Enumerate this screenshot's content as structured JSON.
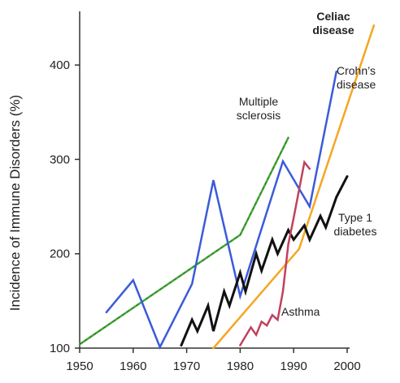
{
  "chart_data": {
    "type": "line",
    "title": "",
    "xlabel": "",
    "ylabel": "Incidence of Immune Disorders (%)",
    "xlim": [
      1950,
      2000
    ],
    "ylim": [
      100,
      450
    ],
    "xticks": [
      "1950",
      "1960",
      "1970",
      "1980",
      "1990",
      "2000"
    ],
    "yticks": [
      "100",
      "200",
      "300",
      "400"
    ],
    "grid": false,
    "legend": "none",
    "series": [
      {
        "name": "Multiple sclerosis",
        "label_lines": [
          "Multiple",
          "sclerosis"
        ],
        "color": "#4aa83c",
        "dashed": true,
        "x": [
          1950,
          1980,
          1989
        ],
        "y": [
          104,
          220,
          323
        ]
      },
      {
        "name": "Crohn's disease",
        "label_lines": [
          "Crohn’s",
          "disease"
        ],
        "color": "#3a5bd9",
        "x": [
          1955,
          1960,
          1965,
          1971,
          1975,
          1980,
          1988,
          1993,
          1998
        ],
        "y": [
          138,
          172,
          101,
          168,
          278,
          155,
          298,
          250,
          393
        ]
      },
      {
        "name": "Celiac disease",
        "label_lines": [
          "Celiac",
          "disease"
        ],
        "color": "#f5a623",
        "bold_label": true,
        "x": [
          1975,
          1991,
          2005
        ],
        "y": [
          100,
          205,
          442
        ]
      },
      {
        "name": "Type 1 diabetes",
        "label_lines": [
          "Type 1",
          "diabetes"
        ],
        "color": "#111111",
        "x": [
          1969,
          1971,
          1972,
          1974,
          1975,
          1977,
          1978,
          1980,
          1981,
          1983,
          1984,
          1986,
          1987,
          1989,
          1990,
          1992,
          1993,
          1995,
          1996,
          1998,
          2000
        ],
        "y": [
          103,
          130,
          118,
          145,
          118,
          160,
          145,
          180,
          160,
          200,
          182,
          215,
          200,
          225,
          215,
          230,
          215,
          240,
          228,
          260,
          282
        ]
      },
      {
        "name": "Asthma",
        "label_lines": [
          "Asthma"
        ],
        "color": "#c0415e",
        "x": [
          1980,
          1982,
          1983,
          1984,
          1985,
          1986,
          1987,
          1988,
          1989,
          1990,
          1992,
          1993
        ],
        "y": [
          103,
          122,
          114,
          128,
          124,
          135,
          130,
          160,
          210,
          238,
          297,
          290
        ]
      }
    ]
  }
}
